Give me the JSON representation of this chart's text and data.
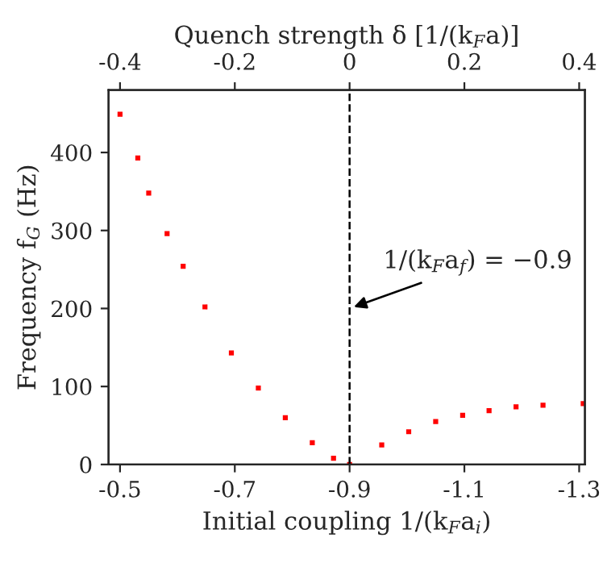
{
  "chart_data": {
    "type": "scatter",
    "xlabel": "Initial coupling 1/(k$_{F}$a$_{i}$)",
    "ylabel": "Frequency f$_{G}$ (Hz)",
    "x2label": "Quench strength δ [1/(k$_{F}$a)]",
    "x": [
      -0.5,
      -0.531,
      -0.55,
      -0.582,
      -0.61,
      -0.648,
      -0.694,
      -0.741,
      -0.788,
      -0.835,
      -0.872,
      -0.9,
      -0.956,
      -1.003,
      -1.05,
      -1.097,
      -1.143,
      -1.19,
      -1.237,
      -1.307
    ],
    "series": [
      {
        "color": "#ff0000",
        "values": [
          449,
          393,
          348,
          296,
          254,
          202,
          143,
          98,
          60,
          28,
          8,
          0,
          25,
          42,
          55,
          63,
          69,
          74,
          76,
          78
        ]
      }
    ],
    "xlim": [
      -0.48,
      -1.31
    ],
    "xticks": [
      -0.5,
      -0.7,
      -0.9,
      -1.1,
      -1.3
    ],
    "x2lim": [
      -0.42,
      0.41
    ],
    "x2ticks": [
      -0.4,
      -0.2,
      0,
      0.2,
      0.4
    ],
    "ylim": [
      0,
      480
    ],
    "yticks": [
      0,
      100,
      200,
      300,
      400
    ],
    "ref_lines": [
      {
        "axis": "x",
        "value": -0.9,
        "color": "#000000",
        "line_style": "dashed"
      }
    ],
    "annotations": [
      {
        "text": "1/(k$_{F}$a$_{f}$) = −0.9",
        "x": -0.9,
        "y": 200
      }
    ],
    "marker": "square",
    "grid": false,
    "legend": false
  }
}
